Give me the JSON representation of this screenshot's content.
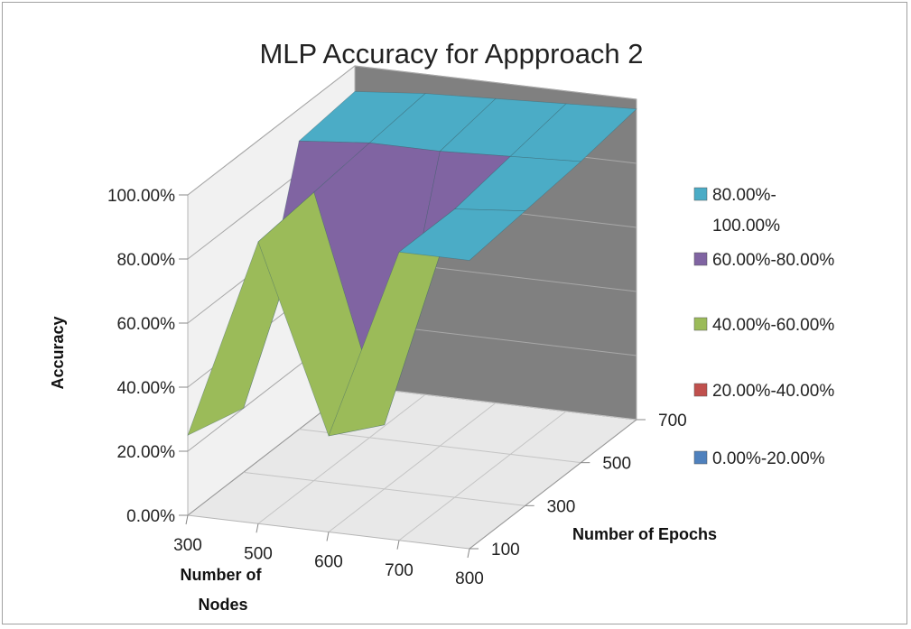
{
  "chart_data": {
    "type": "surface-3d",
    "title": "MLP Accuracy for Appproach 2",
    "zlabel": "Accuracy",
    "xlabel": "Number of Nodes",
    "ylabel": "Number of Epochs",
    "xcategories": [
      "300",
      "500",
      "600",
      "700",
      "800"
    ],
    "ycategories": [
      "100",
      "300",
      "500",
      "700"
    ],
    "zticks": [
      "0.00%",
      "20.00%",
      "40.00%",
      "60.00%",
      "80.00%",
      "100.00%"
    ],
    "zlim": [
      0,
      100
    ],
    "grid": true,
    "legend_position": "right",
    "bands": [
      {
        "label": "80.00%-100.00%",
        "color": "#4BACC6"
      },
      {
        "label": "60.00%-80.00%",
        "color": "#8064A2"
      },
      {
        "label": "40.00%-60.00%",
        "color": "#9BBB59"
      },
      {
        "label": "20.00%-40.00%",
        "color": "#C0504D"
      },
      {
        "label": "0.00%-20.00%",
        "color": "#4F81BD"
      }
    ],
    "series": [
      {
        "name": "100",
        "values": [
          25,
          88,
          30,
          90,
          90
        ]
      },
      {
        "name": "300",
        "values": [
          20,
          90,
          20,
          90,
          92
        ]
      },
      {
        "name": "500",
        "values": [
          90,
          92,
          92,
          93,
          94
        ]
      },
      {
        "name": "700",
        "values": [
          92,
          94,
          95,
          96,
          97
        ]
      }
    ]
  }
}
